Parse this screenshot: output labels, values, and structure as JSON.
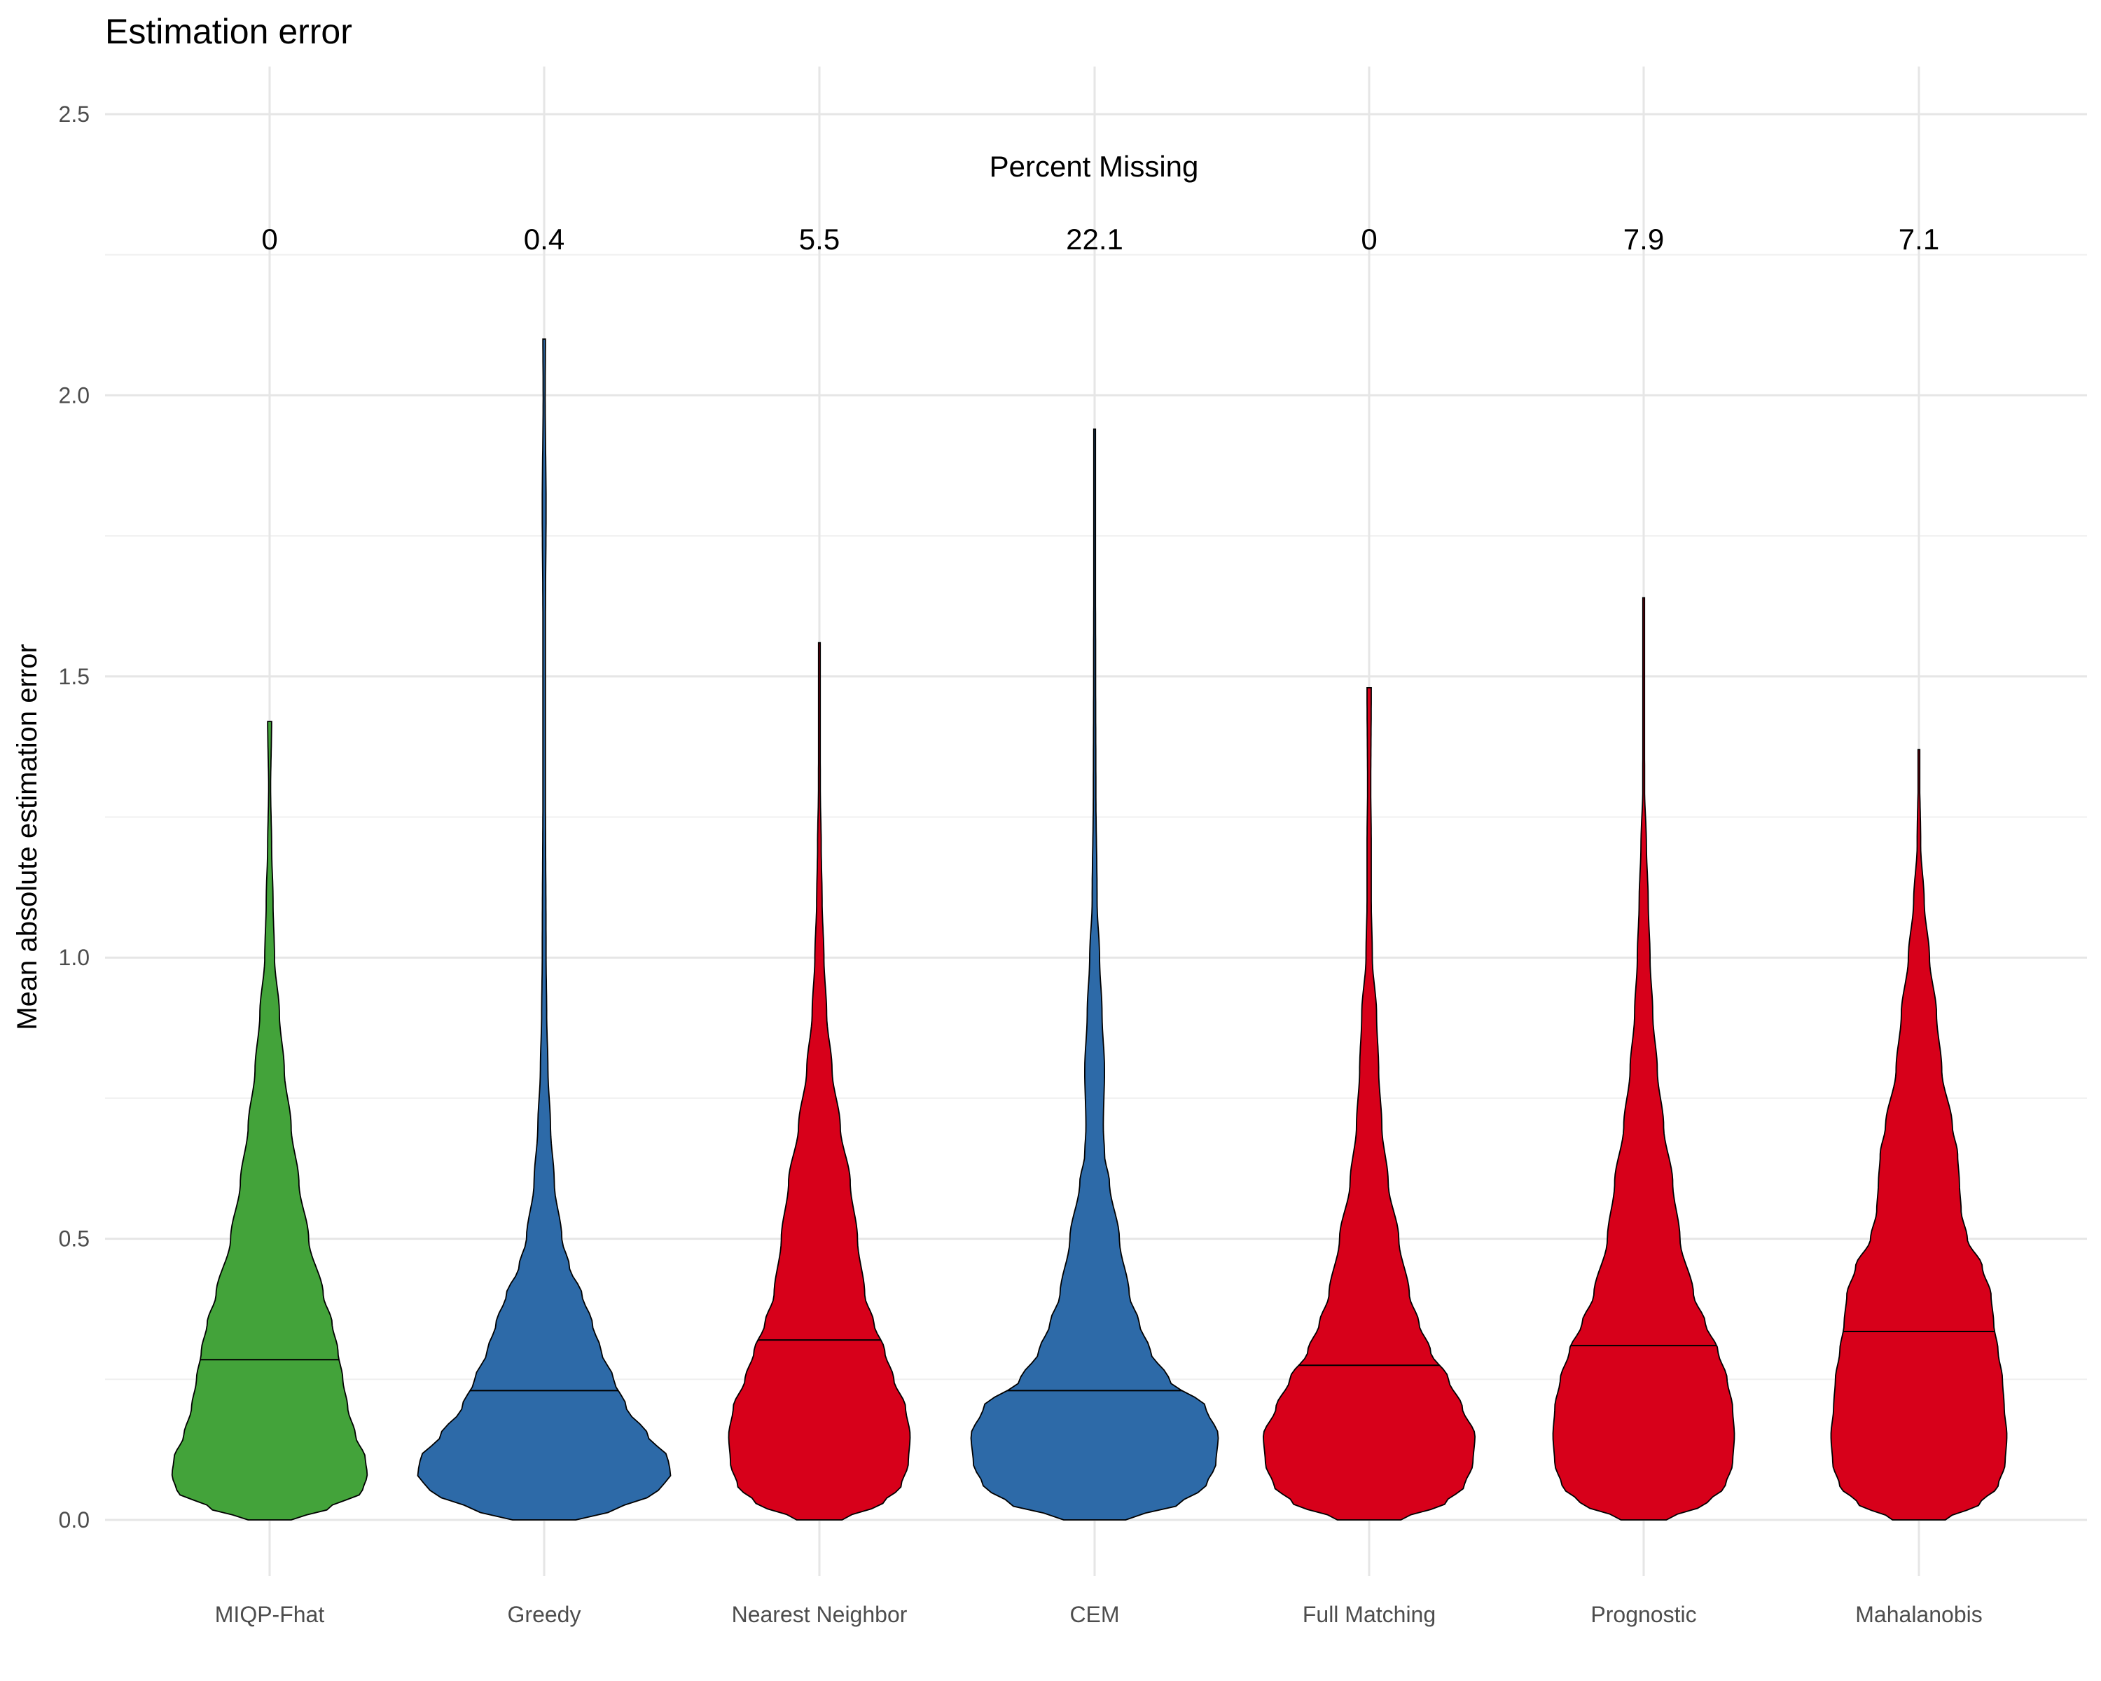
{
  "chart_data": {
    "type": "violin",
    "title": "Estimation error",
    "xlabel": "",
    "ylabel": "Mean absolute estimation error",
    "ylim": [
      -0.18,
      2.6
    ],
    "yticks": [
      "0.0",
      "0.5",
      "1.0",
      "1.5",
      "2.0",
      "2.5"
    ],
    "grid": true,
    "legend": "none",
    "annotation_title": "Percent Missing",
    "colors": {
      "green": "#43a33a",
      "blue": "#2d6aa8",
      "red": "#d7001a"
    },
    "categories": [
      {
        "name": "MIQP-Fhat",
        "percent_missing": "0",
        "color": "#43a33a",
        "min": 0.0,
        "max": 1.42,
        "median": 0.285,
        "max_halfwidth": 0.355,
        "density": [
          [
            0.0,
            0.22
          ],
          [
            0.02,
            0.6
          ],
          [
            0.05,
            0.95
          ],
          [
            0.08,
            1.0
          ],
          [
            0.11,
            0.98
          ],
          [
            0.15,
            0.88
          ],
          [
            0.2,
            0.8
          ],
          [
            0.25,
            0.75
          ],
          [
            0.3,
            0.7
          ],
          [
            0.35,
            0.64
          ],
          [
            0.4,
            0.55
          ],
          [
            0.5,
            0.4
          ],
          [
            0.6,
            0.3
          ],
          [
            0.7,
            0.22
          ],
          [
            0.8,
            0.15
          ],
          [
            0.9,
            0.1
          ],
          [
            1.0,
            0.05
          ],
          [
            1.1,
            0.035
          ],
          [
            1.2,
            0.02
          ],
          [
            1.3,
            0.01
          ],
          [
            1.42,
            0.02
          ]
        ]
      },
      {
        "name": "Greedy",
        "percent_missing": "0.4",
        "color": "#2d6aa8",
        "min": 0.0,
        "max": 2.1,
        "median": 0.23,
        "max_halfwidth": 0.46,
        "density": [
          [
            0.0,
            0.25
          ],
          [
            0.02,
            0.6
          ],
          [
            0.05,
            0.9
          ],
          [
            0.08,
            1.0
          ],
          [
            0.11,
            0.98
          ],
          [
            0.15,
            0.82
          ],
          [
            0.2,
            0.65
          ],
          [
            0.25,
            0.55
          ],
          [
            0.3,
            0.45
          ],
          [
            0.35,
            0.38
          ],
          [
            0.4,
            0.3
          ],
          [
            0.45,
            0.2
          ],
          [
            0.5,
            0.14
          ],
          [
            0.6,
            0.08
          ],
          [
            0.7,
            0.05
          ],
          [
            0.8,
            0.03
          ],
          [
            0.9,
            0.02
          ],
          [
            1.0,
            0.015
          ],
          [
            1.3,
            0.01
          ],
          [
            1.6,
            0.01
          ],
          [
            1.8,
            0.015
          ],
          [
            2.0,
            0.008
          ],
          [
            2.1,
            0.01
          ]
        ]
      },
      {
        "name": "Nearest Neighbor",
        "percent_missing": "5.5",
        "color": "#d7001a",
        "min": 0.0,
        "max": 1.56,
        "median": 0.32,
        "max_halfwidth": 0.33,
        "density": [
          [
            0.0,
            0.25
          ],
          [
            0.03,
            0.7
          ],
          [
            0.06,
            0.9
          ],
          [
            0.1,
            0.98
          ],
          [
            0.15,
            1.0
          ],
          [
            0.2,
            0.95
          ],
          [
            0.25,
            0.82
          ],
          [
            0.3,
            0.72
          ],
          [
            0.35,
            0.6
          ],
          [
            0.4,
            0.5
          ],
          [
            0.5,
            0.42
          ],
          [
            0.6,
            0.34
          ],
          [
            0.7,
            0.23
          ],
          [
            0.8,
            0.14
          ],
          [
            0.9,
            0.08
          ],
          [
            1.0,
            0.05
          ],
          [
            1.1,
            0.03
          ],
          [
            1.2,
            0.02
          ],
          [
            1.3,
            0.01
          ],
          [
            1.56,
            0.005
          ]
        ]
      },
      {
        "name": "CEM",
        "percent_missing": "22.1",
        "color": "#2d6aa8",
        "min": 0.0,
        "max": 1.94,
        "median": 0.23,
        "max_halfwidth": 0.45,
        "density": [
          [
            0.0,
            0.25
          ],
          [
            0.03,
            0.7
          ],
          [
            0.06,
            0.9
          ],
          [
            0.1,
            0.98
          ],
          [
            0.15,
            1.0
          ],
          [
            0.2,
            0.9
          ],
          [
            0.25,
            0.6
          ],
          [
            0.3,
            0.45
          ],
          [
            0.35,
            0.36
          ],
          [
            0.4,
            0.28
          ],
          [
            0.5,
            0.2
          ],
          [
            0.6,
            0.12
          ],
          [
            0.65,
            0.08
          ],
          [
            0.7,
            0.07
          ],
          [
            0.8,
            0.08
          ],
          [
            0.9,
            0.06
          ],
          [
            1.0,
            0.04
          ],
          [
            1.1,
            0.02
          ],
          [
            1.3,
            0.01
          ],
          [
            1.5,
            0.008
          ],
          [
            1.94,
            0.003
          ]
        ]
      },
      {
        "name": "Full Matching",
        "percent_missing": "0",
        "color": "#d7001a",
        "min": 0.0,
        "max": 1.48,
        "median": 0.275,
        "max_halfwidth": 0.385,
        "density": [
          [
            0.0,
            0.3
          ],
          [
            0.03,
            0.72
          ],
          [
            0.06,
            0.9
          ],
          [
            0.1,
            0.98
          ],
          [
            0.15,
            1.0
          ],
          [
            0.2,
            0.88
          ],
          [
            0.25,
            0.75
          ],
          [
            0.3,
            0.58
          ],
          [
            0.35,
            0.47
          ],
          [
            0.4,
            0.38
          ],
          [
            0.5,
            0.28
          ],
          [
            0.6,
            0.18
          ],
          [
            0.7,
            0.12
          ],
          [
            0.8,
            0.09
          ],
          [
            0.9,
            0.07
          ],
          [
            1.0,
            0.03
          ],
          [
            1.1,
            0.02
          ],
          [
            1.2,
            0.02
          ],
          [
            1.3,
            0.015
          ],
          [
            1.48,
            0.02
          ]
        ]
      },
      {
        "name": "Prognostic",
        "percent_missing": "7.9",
        "color": "#d7001a",
        "min": 0.0,
        "max": 1.64,
        "median": 0.31,
        "max_halfwidth": 0.33,
        "density": [
          [
            0.0,
            0.25
          ],
          [
            0.03,
            0.7
          ],
          [
            0.06,
            0.9
          ],
          [
            0.1,
            0.98
          ],
          [
            0.15,
            1.0
          ],
          [
            0.2,
            0.98
          ],
          [
            0.25,
            0.92
          ],
          [
            0.3,
            0.82
          ],
          [
            0.35,
            0.68
          ],
          [
            0.4,
            0.55
          ],
          [
            0.5,
            0.4
          ],
          [
            0.6,
            0.32
          ],
          [
            0.7,
            0.22
          ],
          [
            0.8,
            0.15
          ],
          [
            0.9,
            0.1
          ],
          [
            1.0,
            0.07
          ],
          [
            1.1,
            0.05
          ],
          [
            1.2,
            0.03
          ],
          [
            1.3,
            0.01
          ],
          [
            1.64,
            0.002
          ]
        ]
      },
      {
        "name": "Mahalanobis",
        "percent_missing": "7.1",
        "color": "#d7001a",
        "min": 0.0,
        "max": 1.37,
        "median": 0.335,
        "max_halfwidth": 0.32,
        "density": [
          [
            0.0,
            0.3
          ],
          [
            0.03,
            0.7
          ],
          [
            0.06,
            0.9
          ],
          [
            0.1,
            0.98
          ],
          [
            0.15,
            1.0
          ],
          [
            0.2,
            0.97
          ],
          [
            0.25,
            0.95
          ],
          [
            0.3,
            0.9
          ],
          [
            0.35,
            0.85
          ],
          [
            0.4,
            0.82
          ],
          [
            0.45,
            0.72
          ],
          [
            0.5,
            0.55
          ],
          [
            0.55,
            0.48
          ],
          [
            0.6,
            0.46
          ],
          [
            0.65,
            0.44
          ],
          [
            0.7,
            0.38
          ],
          [
            0.8,
            0.26
          ],
          [
            0.9,
            0.2
          ],
          [
            1.0,
            0.12
          ],
          [
            1.1,
            0.06
          ],
          [
            1.2,
            0.02
          ],
          [
            1.37,
            0.002
          ]
        ]
      }
    ]
  }
}
